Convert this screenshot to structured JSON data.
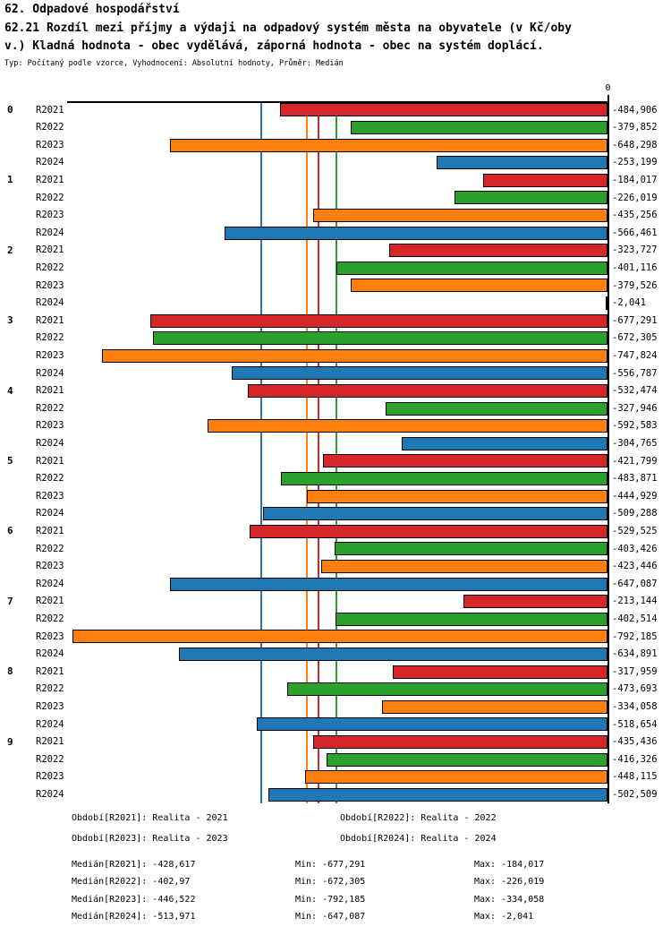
{
  "header": {
    "title": "62. Odpadové hospodářství",
    "subtitle": "62.21 Rozdíl mezi příjmy a výdaji na odpadový systém města na obyvatele (v Kč/obyv.) Kladná hodnota - obec vydělává, záporná hodnota - obec na systém doplácí.",
    "meta": "Typ: Počítaný podle vzorce, Vyhodnocení: Absolutní hodnoty, Průměr: Medián"
  },
  "chart_data": {
    "type": "bar",
    "orientation": "horizontal",
    "title": "62.21 Rozdíl mezi příjmy a výdaji na odpadový systém města na obyvatele (v Kč/obyv.)",
    "zero_label": "0",
    "xlim": [
      -800,
      0
    ],
    "grid": false,
    "legend_position": "bottom",
    "categories": [
      "0",
      "1",
      "2",
      "3",
      "4",
      "5",
      "6",
      "7",
      "8",
      "9"
    ],
    "series": [
      {
        "name": "R2021",
        "period": "Realita - 2021",
        "color": "#d62728",
        "values": [
          -484.906,
          -184.017,
          -323.727,
          -677.291,
          -532.474,
          -421.799,
          -529.525,
          -213.144,
          -317.959,
          -435.436
        ],
        "labels": [
          "-484,906",
          "-184,017",
          "-323,727",
          "-677,291",
          "-532,474",
          "-421,799",
          "-529,525",
          "-213,144",
          "-317,959",
          "-435,436"
        ]
      },
      {
        "name": "R2022",
        "period": "Realita - 2022",
        "color": "#2ca02c",
        "values": [
          -379.852,
          -226.019,
          -401.116,
          -672.305,
          -327.946,
          -483.871,
          -403.426,
          -402.514,
          -473.693,
          -416.326
        ],
        "labels": [
          "-379,852",
          "-226,019",
          "-401,116",
          "-672,305",
          "-327,946",
          "-483,871",
          "-403,426",
          "-402,514",
          "-473,693",
          "-416,326"
        ]
      },
      {
        "name": "R2023",
        "period": "Realita - 2023",
        "color": "#ff7f0e",
        "values": [
          -648.298,
          -435.256,
          -379.526,
          -747.824,
          -592.583,
          -444.929,
          -423.446,
          -792.185,
          -334.058,
          -448.115
        ],
        "labels": [
          "-648,298",
          "-435,256",
          "-379,526",
          "-747,824",
          "-592,583",
          "-444,929",
          "-423,446",
          "-792,185",
          "-334,058",
          "-448,115"
        ]
      },
      {
        "name": "R2024",
        "period": "Realita - 2024",
        "color": "#1f77b4",
        "values": [
          -253.199,
          -566.461,
          -2.041,
          -556.787,
          -304.765,
          -509.288,
          -647.087,
          -634.891,
          -518.654,
          -502.509
        ],
        "labels": [
          "-253,199",
          "-566,461",
          "-2,041",
          "-556,787",
          "-304,765",
          "-509,288",
          "-647,087",
          "-634,891",
          "-518,654",
          "-502,509"
        ]
      }
    ],
    "median_lines": [
      {
        "series": "R2021",
        "value": -428.617,
        "label": "-428,617",
        "color": "#d62728"
      },
      {
        "series": "R2022",
        "value": -402.97,
        "label": "-402,97",
        "color": "#2ca02c"
      },
      {
        "series": "R2023",
        "value": -446.522,
        "label": "-446,522",
        "color": "#ff7f0e"
      },
      {
        "series": "R2024",
        "value": -513.971,
        "label": "-513,971",
        "color": "#1f77b4"
      }
    ]
  },
  "legend": [
    "Období[R2021]: Realita - 2021",
    "Období[R2022]: Realita - 2022",
    "Období[R2023]: Realita - 2023",
    "Období[R2024]: Realita - 2024"
  ],
  "stats": [
    {
      "median": "Medián[R2021]: -428,617",
      "min": "Min: -677,291",
      "max": "Max: -184,017"
    },
    {
      "median": "Medián[R2022]: -402,97",
      "min": "Min: -672,305",
      "max": "Max: -226,019"
    },
    {
      "median": "Medián[R2023]: -446,522",
      "min": "Min: -792,185",
      "max": "Max: -334,058"
    },
    {
      "median": "Medián[R2024]: -513,971",
      "min": "Min: -647,087",
      "max": "Max: -2,041"
    }
  ]
}
